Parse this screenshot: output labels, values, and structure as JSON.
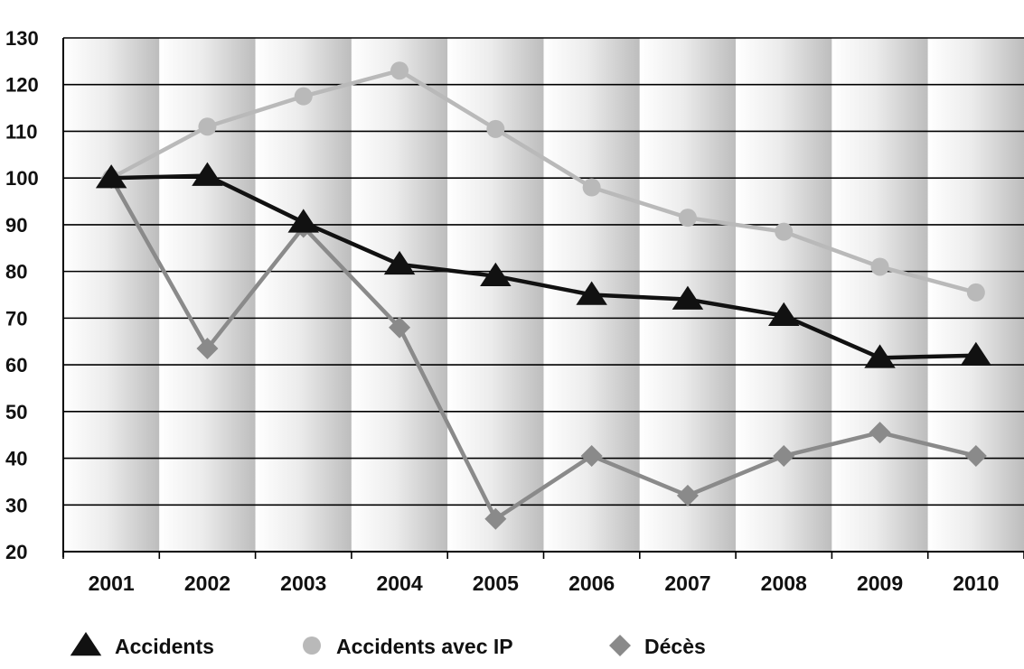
{
  "chart_data": {
    "type": "line",
    "categories": [
      "2001",
      "2002",
      "2003",
      "2004",
      "2005",
      "2006",
      "2007",
      "2008",
      "2009",
      "2010"
    ],
    "ylim": [
      20,
      130
    ],
    "yticks": [
      20,
      30,
      40,
      50,
      60,
      70,
      80,
      90,
      100,
      110,
      120,
      130
    ],
    "grid": true,
    "background": "alternating gradient column bands",
    "legend_position": "bottom",
    "title": "",
    "xlabel": "",
    "ylabel": "",
    "series": [
      {
        "name": "Accidents",
        "marker": "triangle",
        "color": "#111111",
        "values": [
          100,
          100.5,
          90.5,
          81.5,
          79,
          75,
          74,
          70.5,
          61.5,
          62
        ]
      },
      {
        "name": "Accidents avec IP",
        "marker": "circle",
        "color": "#b9b9b9",
        "values": [
          100,
          111,
          117.5,
          123,
          110.5,
          98,
          91.5,
          88.5,
          81,
          75.5
        ]
      },
      {
        "name": "Décès",
        "marker": "diamond",
        "color": "#8a8a8a",
        "values": [
          100,
          63.5,
          89.5,
          68,
          27,
          40.5,
          32,
          40.5,
          45.5,
          40.5
        ]
      }
    ]
  }
}
